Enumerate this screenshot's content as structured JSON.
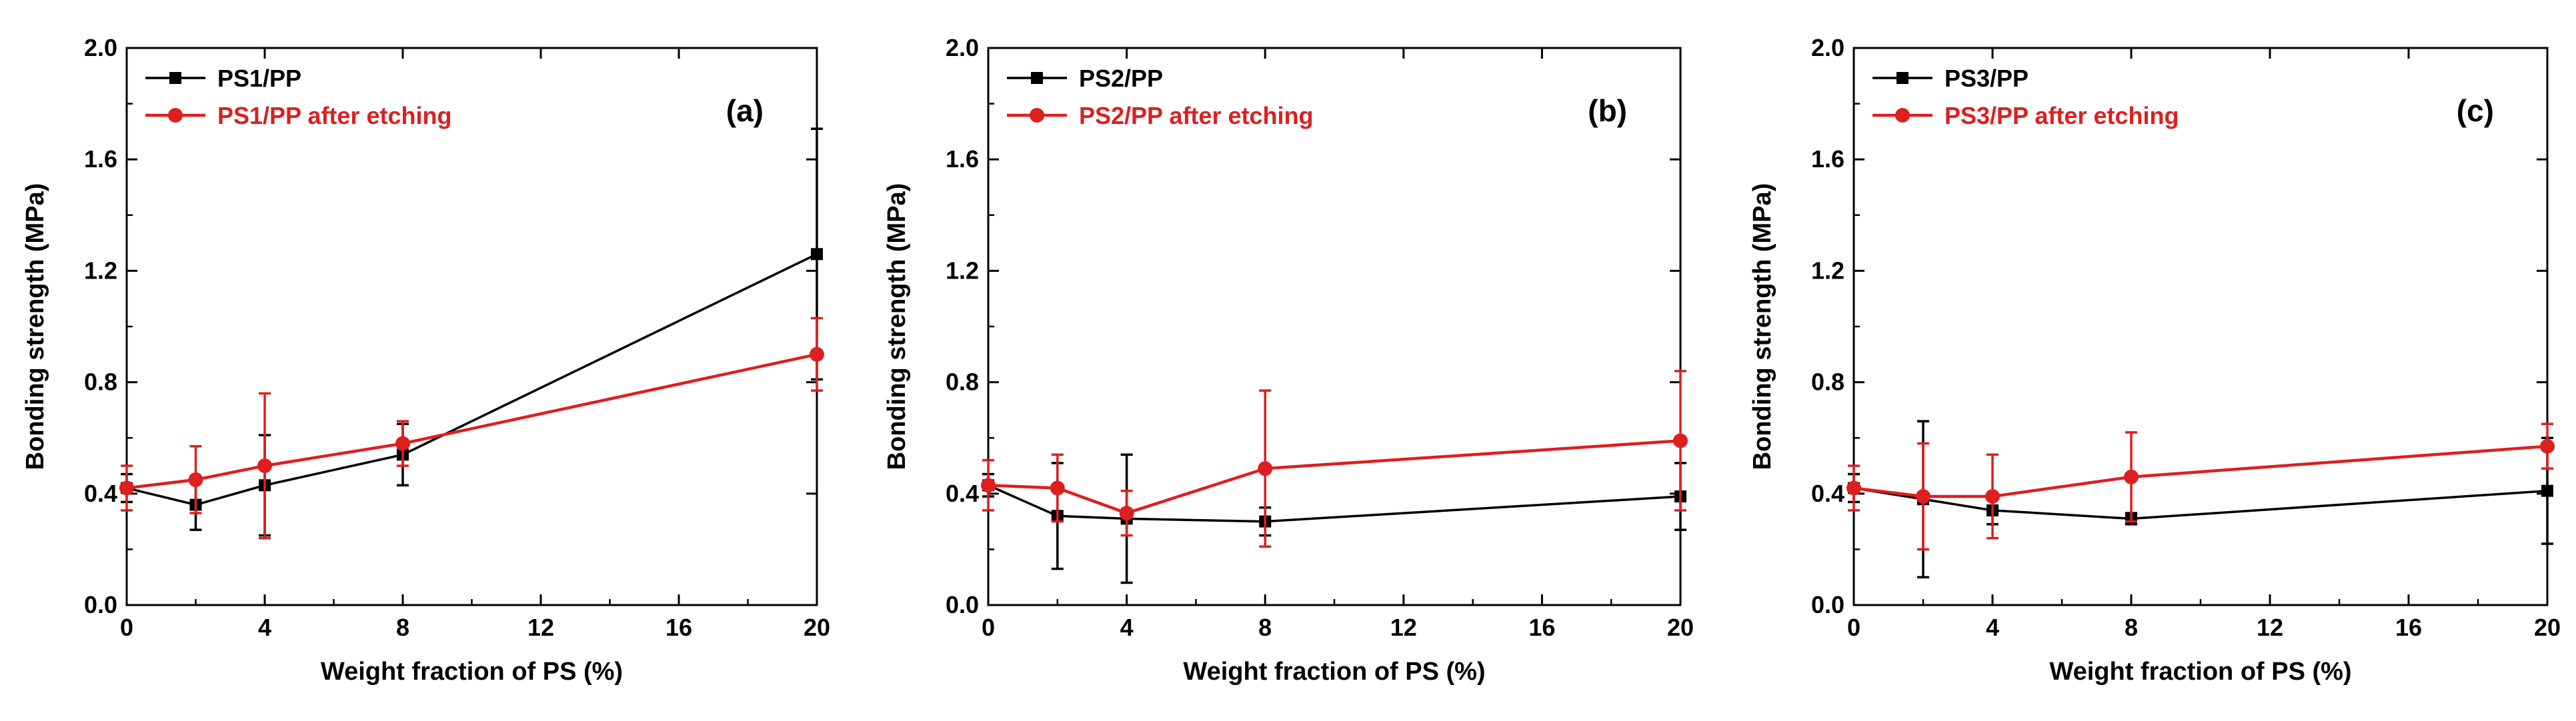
{
  "colors": {
    "series1": "#000000",
    "series2": "#dd1f1f",
    "axis": "#000000"
  },
  "chart_data": [
    {
      "type": "line",
      "panel_label": "(a)",
      "xlabel": "Weight fraction of PS (%)",
      "ylabel": "Bonding strength (MPa)",
      "xlim": [
        0,
        20
      ],
      "ylim": [
        0.0,
        2.0
      ],
      "x_ticks": [
        "0",
        "4",
        "8",
        "12",
        "16",
        "20"
      ],
      "y_ticks": [
        "0.0",
        "0.4",
        "0.8",
        "1.2",
        "1.6",
        "2.0"
      ],
      "legend_position": "top-left",
      "series": [
        {
          "name": "PS1/PP",
          "x": [
            0,
            2,
            4,
            8,
            20
          ],
          "y": [
            0.42,
            0.36,
            0.43,
            0.54,
            1.26
          ],
          "err": [
            0.05,
            0.09,
            0.18,
            0.11,
            0.45
          ]
        },
        {
          "name": "PS1/PP after etching",
          "x": [
            0,
            2,
            4,
            8,
            20
          ],
          "y": [
            0.42,
            0.45,
            0.5,
            0.58,
            0.9
          ],
          "err": [
            0.08,
            0.12,
            0.26,
            0.08,
            0.13
          ]
        }
      ]
    },
    {
      "type": "line",
      "panel_label": "(b)",
      "xlabel": "Weight fraction of PS (%)",
      "ylabel": "Bonding strength (MPa)",
      "xlim": [
        0,
        20
      ],
      "ylim": [
        0.0,
        2.0
      ],
      "x_ticks": [
        "0",
        "4",
        "8",
        "12",
        "16",
        "20"
      ],
      "y_ticks": [
        "0.0",
        "0.4",
        "0.8",
        "1.2",
        "1.6",
        "2.0"
      ],
      "legend_position": "top-left",
      "series": [
        {
          "name": "PS2/PP",
          "x": [
            0,
            2,
            4,
            8,
            20
          ],
          "y": [
            0.43,
            0.32,
            0.31,
            0.3,
            0.39
          ],
          "err": [
            0.04,
            0.19,
            0.23,
            0.05,
            0.12
          ]
        },
        {
          "name": "PS2/PP after etching",
          "x": [
            0,
            2,
            4,
            8,
            20
          ],
          "y": [
            0.43,
            0.42,
            0.33,
            0.49,
            0.59
          ],
          "err": [
            0.09,
            0.12,
            0.08,
            0.28,
            0.25
          ]
        }
      ]
    },
    {
      "type": "line",
      "panel_label": "(c)",
      "xlabel": "Weight fraction of PS (%)",
      "ylabel": "Bonding strength (MPa)",
      "xlim": [
        0,
        20
      ],
      "ylim": [
        0.0,
        2.0
      ],
      "x_ticks": [
        "0",
        "4",
        "8",
        "12",
        "16",
        "20"
      ],
      "y_ticks": [
        "0.0",
        "0.4",
        "0.8",
        "1.2",
        "1.6",
        "2.0"
      ],
      "legend_position": "top-left",
      "series": [
        {
          "name": "PS3/PP",
          "x": [
            0,
            2,
            4,
            8,
            20
          ],
          "y": [
            0.42,
            0.38,
            0.34,
            0.31,
            0.41
          ],
          "err": [
            0.05,
            0.28,
            0.05,
            0.02,
            0.19
          ]
        },
        {
          "name": "PS3/PP after etching",
          "x": [
            0,
            2,
            4,
            8,
            20
          ],
          "y": [
            0.42,
            0.39,
            0.39,
            0.46,
            0.57
          ],
          "err": [
            0.08,
            0.19,
            0.15,
            0.16,
            0.08
          ]
        }
      ]
    }
  ]
}
